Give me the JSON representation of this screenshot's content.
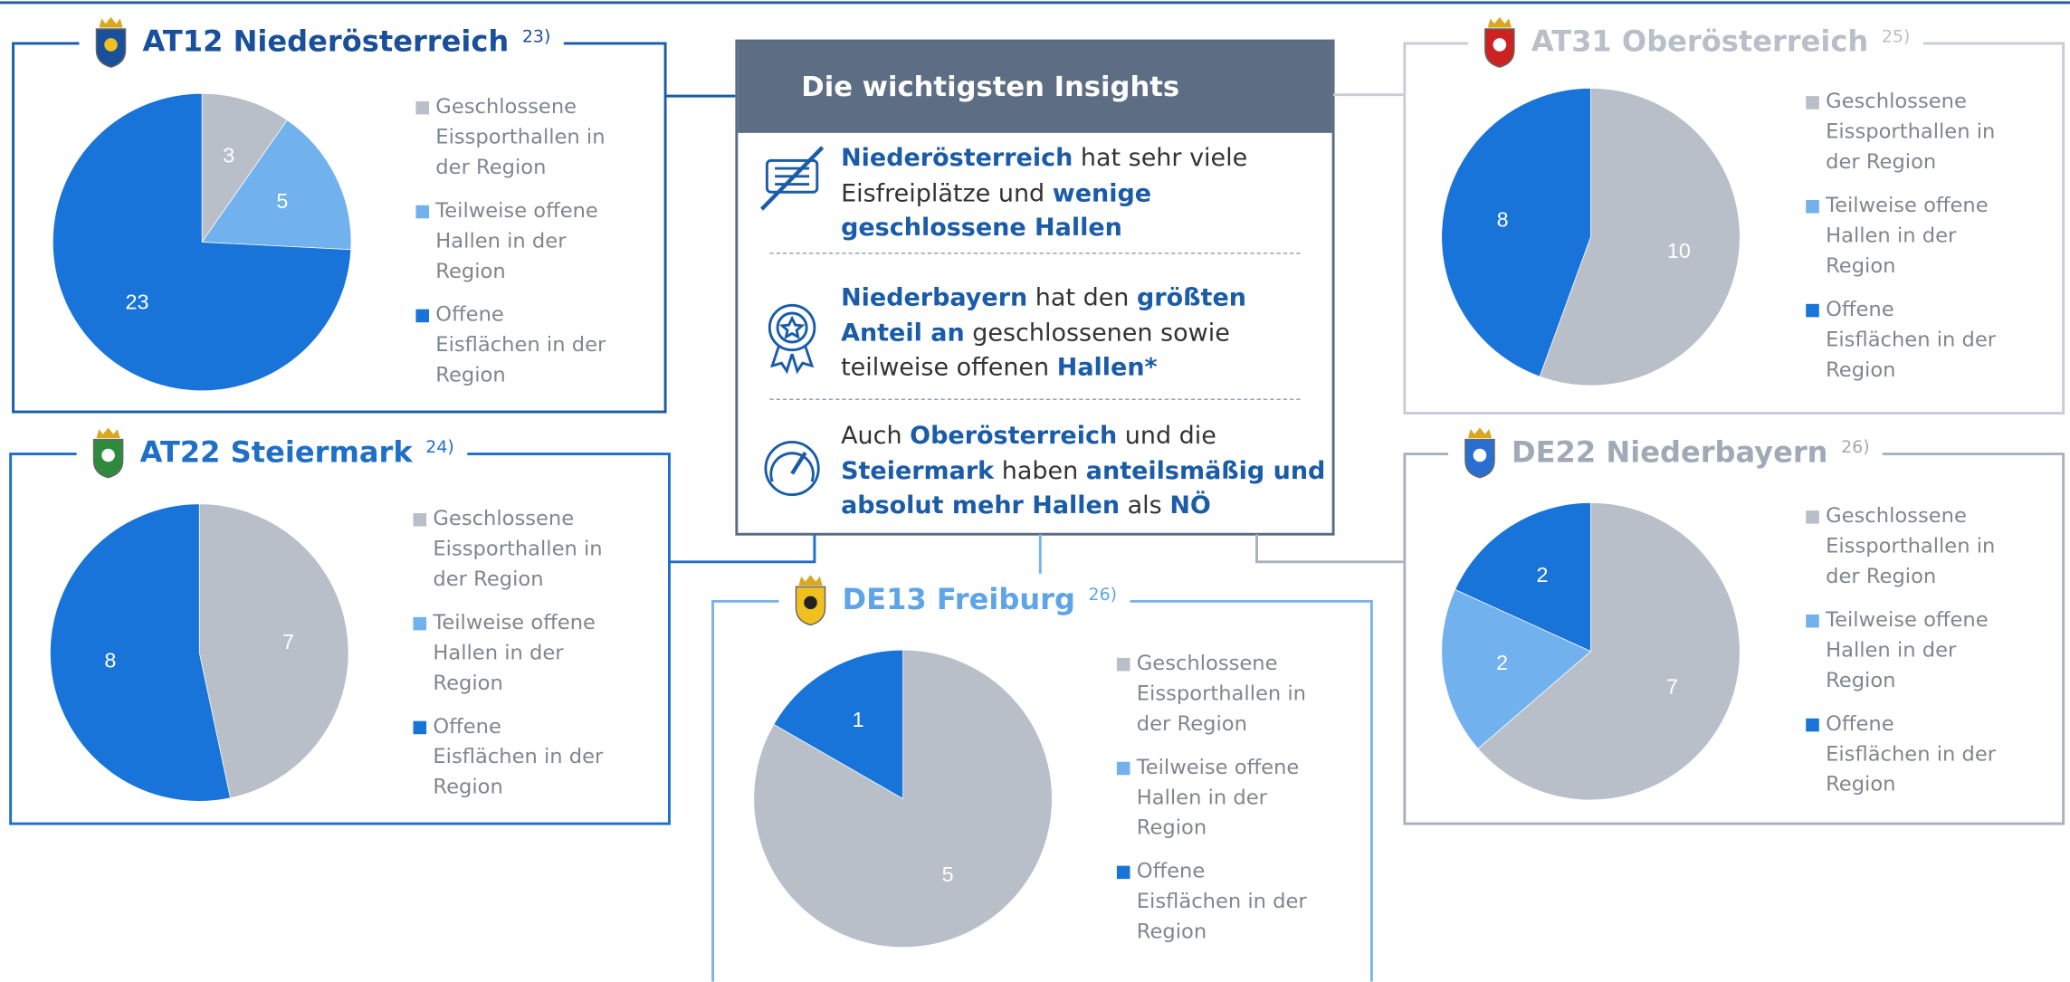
{
  "chart_data": [
    {
      "type": "pie",
      "title": "AT12 Niederösterreich",
      "note": "23)",
      "categories": [
        "Geschlossene Eissporthallen in der Region",
        "Teilweise offene Hallen in der Region",
        "Offene Eisflächen in der Region"
      ],
      "values": [
        3,
        5,
        23
      ],
      "colors": [
        "#b9bfc9",
        "#70b1ee",
        "#1874d9"
      ],
      "title_color": "#1a4f9a",
      "frame_color": "#1a5ca8"
    },
    {
      "type": "pie",
      "title": "AT22 Steiermark",
      "note": "24)",
      "categories": [
        "Geschlossene Eissporthallen in der Region",
        "Teilweise offene Hallen in der Region",
        "Offene Eisflächen in der Region"
      ],
      "values": [
        7,
        0,
        8
      ],
      "colors": [
        "#b9bfc9",
        "#70b1ee",
        "#1874d9"
      ],
      "title_color": "#1f6fc7",
      "frame_color": "#1f6fc7"
    },
    {
      "type": "pie",
      "title": "DE13 Freiburg",
      "note": "26)",
      "categories": [
        "Geschlossene Eissporthallen in der Region",
        "Teilweise offene Hallen in der Region",
        "Offene Eisflächen in der Region"
      ],
      "values": [
        5,
        0,
        1
      ],
      "colors": [
        "#b9bfc9",
        "#70b1ee",
        "#1874d9"
      ],
      "title_color": "#5ea4e6",
      "frame_color": "#7ab3e8"
    },
    {
      "type": "pie",
      "title": "AT31 Oberösterreich",
      "note": "25)",
      "categories": [
        "Geschlossene Eissporthallen in der Region",
        "Teilweise offene Hallen in der Region",
        "Offene Eisflächen in der Region"
      ],
      "values": [
        10,
        0,
        8
      ],
      "colors": [
        "#b9bfc9",
        "#70b1ee",
        "#1874d9"
      ],
      "title_color": "#b9bfc9",
      "frame_color": "#c8ccd4"
    },
    {
      "type": "pie",
      "title": "DE22 Niederbayern",
      "note": "26)",
      "categories": [
        "Geschlossene Eissporthallen in der Region",
        "Teilweise offene Hallen in der Region",
        "Offene Eisflächen in der Region"
      ],
      "values": [
        7,
        2,
        2
      ],
      "colors": [
        "#b9bfc9",
        "#70b1ee",
        "#1874d9"
      ],
      "title_color": "#a0a9b6",
      "frame_color": "#a9b1bd"
    }
  ],
  "insights": {
    "title": "Die wichtigsten Insights",
    "items": [
      {
        "parts": [
          {
            "text": "Niederösterreich",
            "bold": true
          },
          {
            "text": " hat sehr viele Eisfreiplätze und ",
            "bold": false
          },
          {
            "text": "wenige geschlossene Hallen",
            "bold": true
          }
        ]
      },
      {
        "parts": [
          {
            "text": "Niederbayern",
            "bold": true
          },
          {
            "text": " hat den ",
            "bold": false
          },
          {
            "text": "größten Anteil an",
            "bold": true
          },
          {
            "text": " geschlossenen sowie teilweise offenen ",
            "bold": false
          },
          {
            "text": "Hallen*",
            "bold": true
          }
        ]
      },
      {
        "parts": [
          {
            "text": "Auch ",
            "bold": false
          },
          {
            "text": "Oberösterreich",
            "bold": true
          },
          {
            "text": " und die ",
            "bold": false
          },
          {
            "text": "Steiermark",
            "bold": true
          },
          {
            "text": " haben ",
            "bold": false
          },
          {
            "text": "anteilsmäßig und absolut mehr Hallen",
            "bold": true
          },
          {
            "text": " als ",
            "bold": false
          },
          {
            "text": "NÖ",
            "bold": true
          }
        ]
      }
    ]
  }
}
